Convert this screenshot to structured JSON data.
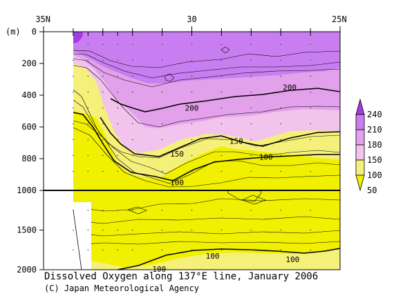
{
  "caption": "Dissolved Oxygen along 137°E line, January 2006",
  "credit": "(C) Japan Meteorological Agency",
  "chart_data": {
    "type": "heatmap",
    "title": "Dissolved Oxygen along 137°E line, January 2006",
    "x_axis": {
      "labels": [
        "35N",
        "30",
        "25N"
      ],
      "latitudes": [
        35,
        30,
        25
      ],
      "range": [
        35,
        25
      ]
    },
    "y_axis": {
      "unit_label": "(m)",
      "upper_ticks": [
        0,
        200,
        400,
        600,
        800,
        1000
      ],
      "lower_ticks": [
        1000,
        1500,
        2000
      ],
      "upper_range": [
        0,
        1000
      ],
      "lower_range": [
        1000,
        2000
      ]
    },
    "colorbar": {
      "levels": [
        50,
        100,
        150,
        180,
        210,
        240
      ],
      "labels": [
        "240",
        "210",
        "180",
        "150",
        "100",
        "50"
      ],
      "colors": [
        "#f0f000",
        "#f5f07a",
        "#f2c3ec",
        "#e3a0eb",
        "#c87ef0",
        "#a23be0"
      ]
    },
    "contour_labels": [
      {
        "value": "200",
        "lat": 26.7,
        "depth": 350
      },
      {
        "value": "200",
        "lat": 30.0,
        "depth": 480
      },
      {
        "value": "150",
        "lat": 30.5,
        "depth": 770
      },
      {
        "value": "150",
        "lat": 28.5,
        "depth": 690
      },
      {
        "value": "100",
        "lat": 30.5,
        "depth": 950
      },
      {
        "value": "100",
        "lat": 27.5,
        "depth": 790
      },
      {
        "value": "100",
        "lat": 29.3,
        "depth": 1825
      },
      {
        "value": "100",
        "lat": 26.6,
        "depth": 1870
      },
      {
        "value": "100",
        "lat": 31.1,
        "depth": 1990
      }
    ],
    "station_latitudes": [
      34.0,
      33.5,
      33.0,
      32.5,
      32.0,
      31.0,
      30.0,
      29.0,
      28.0,
      27.0,
      26.0,
      25.0
    ],
    "grid": false
  }
}
